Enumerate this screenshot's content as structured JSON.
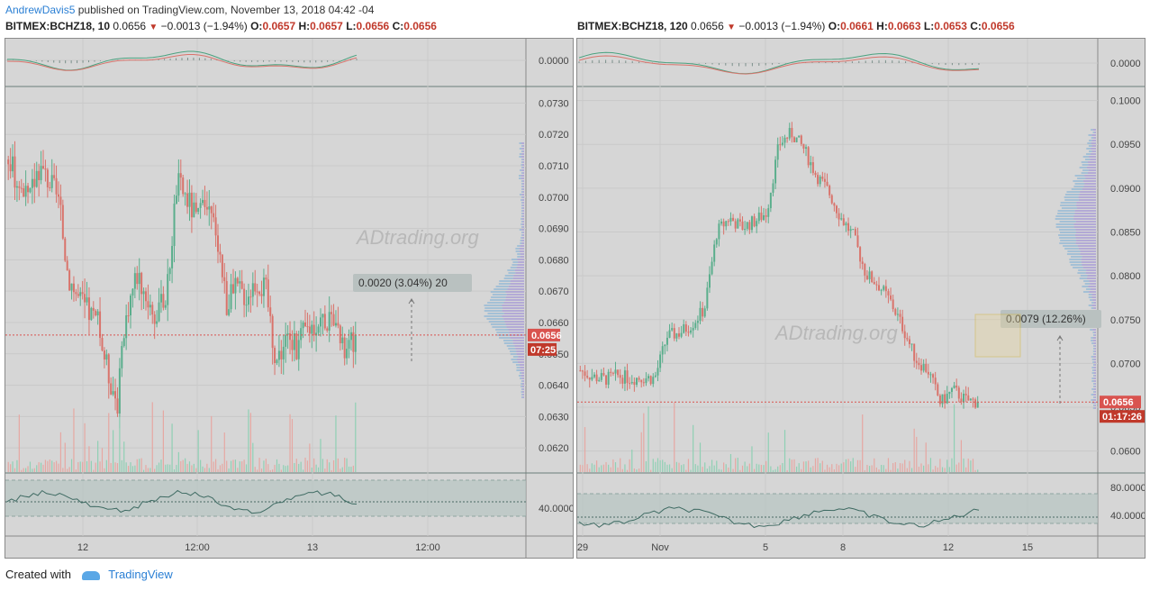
{
  "header": {
    "author": "AndrewDavis5",
    "published_text": "published on TradingView.com, November 13, 2018 04:42 -04"
  },
  "left_chart": {
    "symbol": "BITMEX:BCHZ18, 10",
    "last": "0.0656",
    "change": "−0.0013 (−1.94%)",
    "open_label": "O:",
    "open": "0.0657",
    "high_label": "H:",
    "high": "0.0657",
    "low_label": "L:",
    "low": "0.0656",
    "close_label": "C:",
    "close": "0.0656",
    "price_ticks": [
      "0.0730",
      "0.0720",
      "0.0710",
      "0.0700",
      "0.0690",
      "0.0680",
      "0.0670",
      "0.0660",
      "0.0650",
      "0.0640",
      "0.0630",
      "0.0620"
    ],
    "macd_tick": "0.0000",
    "rsi_tick": "40.0000",
    "time_ticks": [
      "12",
      "12:00",
      "13",
      "12:00"
    ],
    "price_label": "0.0656",
    "countdown_label": "07:25",
    "measure_label": "0.0020 (3.04%) 20",
    "watermark": "ADtrading.org"
  },
  "right_chart": {
    "symbol": "BITMEX:BCHZ18, 120",
    "last": "0.0656",
    "change": "−0.0013 (−1.94%)",
    "open_label": "O:",
    "open": "0.0661",
    "high_label": "H:",
    "high": "0.0663",
    "low_label": "L:",
    "low": "0.0653",
    "close_label": "C:",
    "close": "0.0656",
    "price_ticks": [
      "0.1000",
      "0.0950",
      "0.0900",
      "0.0850",
      "0.0800",
      "0.0750",
      "0.0700",
      "0.0650",
      "0.0600"
    ],
    "macd_tick": "0.0000",
    "rsi_ticks": [
      "80.0000",
      "40.0000"
    ],
    "time_ticks": [
      "29",
      "Nov",
      "5",
      "8",
      "12",
      "15"
    ],
    "price_label": "0.0656",
    "countdown_label": "01:17:26",
    "measure_label": "0.0079 (12.26%)",
    "watermark": "ADtrading.org"
  },
  "footer": {
    "created_with": "Created with",
    "brand": "TradingView"
  },
  "colors": {
    "up": "#5aae8c",
    "down": "#d9736b",
    "panel_bg": "#d6d6d6",
    "price_tag": "#d9534f",
    "volume_profile": "#a79bd6"
  },
  "chart_data": [
    {
      "type": "candlestick",
      "title": "BITMEX:BCHZ18, 10",
      "x": [
        "12",
        "12:00",
        "13",
        "12:00"
      ],
      "ylim": [
        0.0612,
        0.0735
      ],
      "close_path": [
        0.0712,
        0.0705,
        0.0698,
        0.071,
        0.0706,
        0.07,
        0.0676,
        0.0668,
        0.0664,
        0.066,
        0.0645,
        0.0635,
        0.0665,
        0.0676,
        0.0668,
        0.0661,
        0.067,
        0.0705,
        0.07,
        0.0693,
        0.0696,
        0.069,
        0.0666,
        0.0671,
        0.0669,
        0.0674,
        0.067,
        0.0648,
        0.0655,
        0.0652,
        0.0658,
        0.066,
        0.0662,
        0.0656,
        0.065,
        0.0656
      ],
      "last": 0.0656
    },
    {
      "type": "candlestick",
      "title": "BITMEX:BCHZ18, 120",
      "x": [
        "29",
        "Nov",
        "5",
        "8",
        "12",
        "15"
      ],
      "ylim": [
        0.0575,
        0.1015
      ],
      "close_path": [
        0.0692,
        0.0685,
        0.0682,
        0.0686,
        0.0683,
        0.0684,
        0.0683,
        0.0731,
        0.0735,
        0.0745,
        0.0762,
        0.085,
        0.0866,
        0.0855,
        0.0862,
        0.0872,
        0.095,
        0.0963,
        0.0945,
        0.0915,
        0.0896,
        0.0866,
        0.0845,
        0.0802,
        0.079,
        0.077,
        0.074,
        0.0705,
        0.0692,
        0.0655,
        0.067,
        0.0658,
        0.0656
      ],
      "last": 0.0656
    }
  ]
}
